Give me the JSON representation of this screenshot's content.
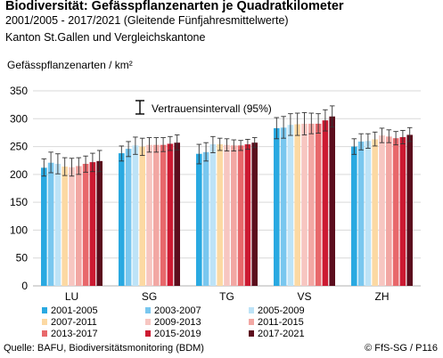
{
  "header": {
    "title": "Biodiversität: Gefässpflanzenarten je Quadratkilometer",
    "subtitle": "2001/2005 - 2017/2021 (Gleitende Fünfjahresmittelwerte)",
    "subtitle2": "Kanton St.Gallen und Vergleichskantone"
  },
  "footer": {
    "source": "Quelle: BAFU, Biodiversitätsmonitoring (BDM)",
    "copyright": "© FfS-SG / P116"
  },
  "chart_data": {
    "type": "bar",
    "ylabel": "Gefässpflanzenarten / km²",
    "ylim": [
      0,
      350
    ],
    "yticks": [
      0,
      50,
      100,
      150,
      200,
      250,
      300,
      350
    ],
    "grid": true,
    "legend_position": "bottom",
    "ci_label": "Vertrauensintervall (95%)",
    "categories": [
      "LU",
      "SG",
      "TG",
      "VS",
      "ZH"
    ],
    "series": [
      {
        "name": "2001-2005",
        "color": "#29a9e1",
        "values": [
          212,
          238,
          237,
          283,
          250
        ],
        "ci_low": [
          197,
          224,
          219,
          264,
          236
        ],
        "ci_high": [
          228,
          251,
          254,
          302,
          264
        ]
      },
      {
        "name": "2003-2007",
        "color": "#79c7ef",
        "values": [
          221,
          246,
          240,
          284,
          259
        ],
        "ci_low": [
          203,
          232,
          224,
          265,
          244
        ],
        "ci_high": [
          240,
          259,
          257,
          304,
          273
        ]
      },
      {
        "name": "2005-2009",
        "color": "#bde3f7",
        "values": [
          219,
          252,
          254,
          289,
          260
        ],
        "ci_low": [
          201,
          236,
          239,
          270,
          247
        ],
        "ci_high": [
          237,
          267,
          268,
          309,
          273
        ]
      },
      {
        "name": "2007-2011",
        "color": "#fcd9a3",
        "values": [
          214,
          250,
          254,
          290,
          263
        ],
        "ci_low": [
          198,
          234,
          243,
          270,
          251
        ],
        "ci_high": [
          230,
          265,
          265,
          310,
          276
        ]
      },
      {
        "name": "2009-2013",
        "color": "#f7c6c1",
        "values": [
          213,
          253,
          253,
          291,
          270
        ],
        "ci_low": [
          197,
          240,
          242,
          271,
          257
        ],
        "ci_high": [
          229,
          266,
          264,
          311,
          283
        ]
      },
      {
        "name": "2011-2015",
        "color": "#f2a7a3",
        "values": [
          215,
          253,
          252,
          291,
          268
        ],
        "ci_low": [
          200,
          240,
          242,
          273,
          257
        ],
        "ci_high": [
          230,
          266,
          262,
          310,
          280
        ]
      },
      {
        "name": "2013-2017",
        "color": "#e8686b",
        "values": [
          219,
          253,
          252,
          291,
          265
        ],
        "ci_low": [
          204,
          241,
          243,
          274,
          253
        ],
        "ci_high": [
          233,
          266,
          261,
          309,
          277
        ]
      },
      {
        "name": "2015-2019",
        "color": "#cc1a32",
        "values": [
          222,
          255,
          254,
          297,
          267
        ],
        "ci_low": [
          205,
          243,
          245,
          278,
          255
        ],
        "ci_high": [
          238,
          268,
          263,
          316,
          279
        ]
      },
      {
        "name": "2017-2021",
        "color": "#5c0d1d",
        "values": [
          224,
          257,
          257,
          304,
          271
        ],
        "ci_low": [
          205,
          244,
          248,
          285,
          259
        ],
        "ci_high": [
          243,
          271,
          266,
          323,
          284
        ]
      }
    ]
  }
}
